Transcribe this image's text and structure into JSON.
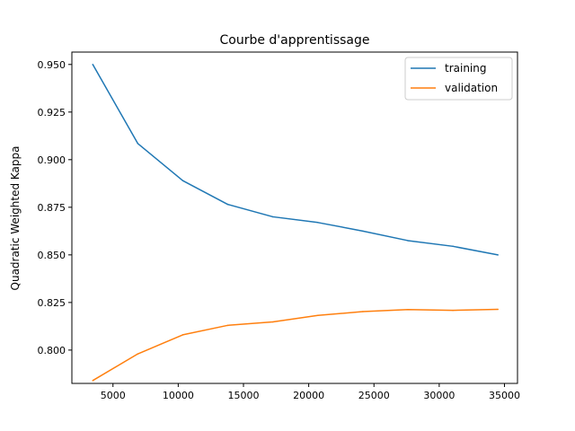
{
  "chart_data": {
    "type": "line",
    "title": "Courbe d'apprentissage",
    "xlabel": "",
    "ylabel": "Quadratic Weighted Kappa",
    "xlim": [
      1850,
      36000
    ],
    "ylim": [
      0.7825,
      0.9565
    ],
    "xticks": [
      5000,
      10000,
      15000,
      20000,
      25000,
      30000,
      35000
    ],
    "xtick_labels": [
      "5000",
      "10000",
      "15000",
      "20000",
      "25000",
      "30000",
      "35000"
    ],
    "yticks": [
      0.8,
      0.825,
      0.85,
      0.875,
      0.9,
      0.925,
      0.95
    ],
    "ytick_labels": [
      "0.800",
      "0.825",
      "0.850",
      "0.875",
      "0.900",
      "0.925",
      "0.950"
    ],
    "legend_position": "top-right",
    "x": [
      3450,
      6900,
      10350,
      13800,
      17250,
      20700,
      24150,
      27600,
      31050,
      34500
    ],
    "series": [
      {
        "name": "training",
        "color": "#1f77b4",
        "values": [
          0.95,
          0.9085,
          0.889,
          0.8765,
          0.87,
          0.867,
          0.8625,
          0.8575,
          0.8545,
          0.85
        ]
      },
      {
        "name": "validation",
        "color": "#ff7f0e",
        "values": [
          0.784,
          0.798,
          0.808,
          0.813,
          0.8148,
          0.8182,
          0.8202,
          0.8213,
          0.8209,
          0.8214
        ]
      }
    ]
  }
}
